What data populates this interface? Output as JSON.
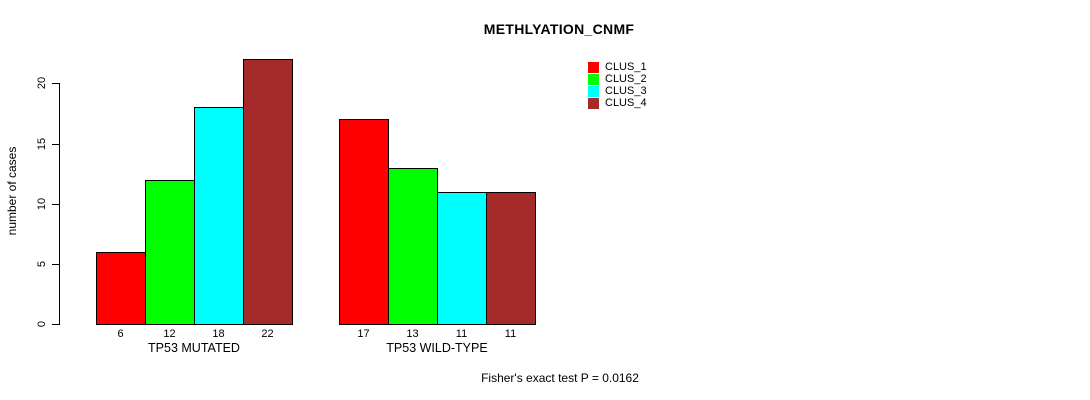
{
  "title": "METHLYATION_CNMF",
  "footer": "Fisher's exact test P = 0.0162",
  "legend": {
    "items": [
      {
        "label": "CLUS_1",
        "color": "#FF0000"
      },
      {
        "label": "CLUS_2",
        "color": "#00FF00"
      },
      {
        "label": "CLUS_3",
        "color": "#00FFFF"
      },
      {
        "label": "CLUS_4",
        "color": "#A52A2A"
      }
    ]
  },
  "chart_data": {
    "type": "bar",
    "title": "METHLYATION_CNMF",
    "categories": [
      "TP53 MUTATED",
      "TP53 WILD-TYPE"
    ],
    "series": [
      {
        "name": "CLUS_1",
        "color": "#FF0000",
        "values": [
          6,
          17
        ]
      },
      {
        "name": "CLUS_2",
        "color": "#00FF00",
        "values": [
          12,
          13
        ]
      },
      {
        "name": "CLUS_3",
        "color": "#00FFFF",
        "values": [
          18,
          11
        ]
      },
      {
        "name": "CLUS_4",
        "color": "#A52A2A",
        "values": [
          22,
          11
        ]
      }
    ],
    "xlabel": "",
    "ylabel": "number of cases",
    "ylim": [
      0,
      22
    ],
    "yticks": [
      0,
      5,
      10,
      15,
      20
    ],
    "grid": false,
    "legend_position": "top-right",
    "bar_value_labels_shown": true,
    "annotation": "Fisher's exact test P = 0.0162"
  }
}
